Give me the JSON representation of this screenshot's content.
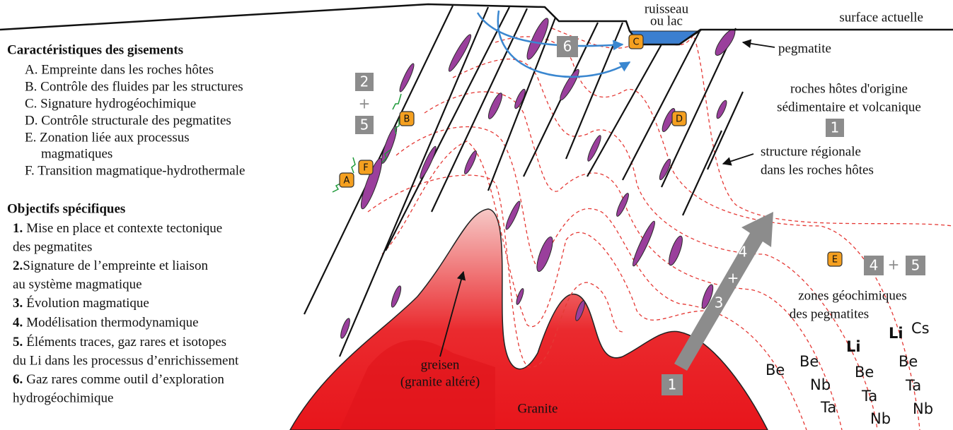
{
  "surface_label": "surface actuelle",
  "stream_label": [
    "ruisseau",
    "ou lac"
  ],
  "characteristics": {
    "title": "Caractéristiques des gisements",
    "items": [
      [
        "A. Empreinte dans les roches hôtes"
      ],
      [
        "B. Contrôle des fluides par les structures"
      ],
      [
        "C. Signature hydrogéochimique"
      ],
      [
        "D. Contrôle structurale des pegmatites"
      ],
      [
        "E. Zonation liée aux processus",
        "magmatiques"
      ],
      [
        "F. Transition magmatique-hydrothermale"
      ]
    ]
  },
  "objectives": {
    "title": "Objectifs spécifiques",
    "items": [
      {
        "number": "1.",
        "lines": [
          "Mise en place et contexte tectonique",
          "des pegmatites"
        ]
      },
      {
        "number": "2.",
        "lines": [
          "Signature de l’empreinte et liaison",
          "au système magmatique"
        ]
      },
      {
        "number": "3.",
        "lines": [
          "Évolution magmatique"
        ]
      },
      {
        "number": "4.",
        "lines": [
          "Modélisation thermodynamique"
        ]
      },
      {
        "number": "5.",
        "lines": [
          "Éléments traces, gaz rares et isotopes",
          "du Li dans les processus d’enrichissement"
        ]
      },
      {
        "number": "6.",
        "lines": [
          "Gaz rares comme outil d’exploration",
          "hydrogéochimique"
        ]
      }
    ]
  },
  "labels": {
    "pegmatite": "pegmatite",
    "host_rocks": [
      "roches hôtes d'origine",
      "sédimentaire et volcanique"
    ],
    "structure": [
      "structure régionale",
      "dans les roches hôtes"
    ],
    "zones": [
      "zones géochimiques",
      "des pegmatites"
    ],
    "greisen": [
      "greisen",
      "(granite altéré)"
    ],
    "granite": "Granite"
  },
  "badges": [
    "A",
    "B",
    "C",
    "D",
    "E",
    "F"
  ],
  "steps": {
    "stream": "6",
    "structures": [
      "2",
      "+",
      "5"
    ],
    "host": "1",
    "zones": [
      "4",
      "+",
      "5"
    ],
    "granite": "1",
    "arrow": [
      "4",
      "+",
      "3"
    ]
  },
  "elements": [
    [
      "Be"
    ],
    [
      "Be",
      "Nb",
      "Ta"
    ],
    [
      "Li",
      "Be",
      "Ta",
      "Nb"
    ],
    [
      "Li",
      "Cs",
      "Be",
      "Ta",
      "Nb"
    ]
  ]
}
